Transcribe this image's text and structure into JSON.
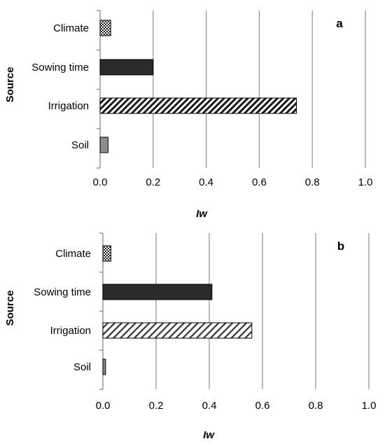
{
  "chart_data": [
    {
      "type": "bar",
      "orientation": "horizontal",
      "panel_label": "a",
      "categories": [
        "Climate",
        "Sowing time",
        "Irrigation",
        "Soil"
      ],
      "values": [
        0.04,
        0.2,
        0.74,
        0.03
      ],
      "bar_patterns": [
        "checker",
        "solid-black",
        "diagonal-hatch-dense",
        "solid-gray"
      ],
      "xlabel": "Iw",
      "ylabel": "Source",
      "xlim": [
        0,
        1.0
      ],
      "xticks": [
        "0.0",
        "0.2",
        "0.4",
        "0.6",
        "0.8",
        "1.0"
      ],
      "grid": "vertical"
    },
    {
      "type": "bar",
      "orientation": "horizontal",
      "panel_label": "b",
      "categories": [
        "Climate",
        "Sowing time",
        "Irrigation",
        "Soil"
      ],
      "values": [
        0.03,
        0.41,
        0.56,
        0.01
      ],
      "bar_patterns": [
        "checker",
        "solid-black",
        "diagonal-hatch",
        "solid-gray"
      ],
      "xlabel": "Iw",
      "ylabel": "Source",
      "xlim": [
        0,
        1.0
      ],
      "xticks": [
        "0.0",
        "0.2",
        "0.4",
        "0.6",
        "0.8",
        "1.0"
      ],
      "grid": "vertical"
    }
  ],
  "colors": {
    "bar_black": "#2b2b2b",
    "bar_gray": "#8c8c8c",
    "grid": "#8f8f8f",
    "axis": "#7f7f7f"
  }
}
